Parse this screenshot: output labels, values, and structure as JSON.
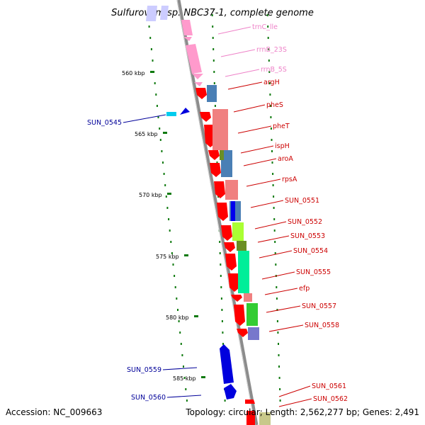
{
  "title": "Sulfurovum sp. NBC37-1, complete genome",
  "accession": "Accession: NC_009663",
  "topology": "Topology: circular; Length: 2,562,277 bp; Genes: 2,491",
  "colors": {
    "backbone": "#8c8c8c",
    "tick": "#0f7a0f",
    "forward_label": "#cc0000",
    "reverse_label": "#000099",
    "rna_label": "#ee82c8",
    "rna_feature": "#ff9acc",
    "forward_feature": "#ff0000",
    "reverse_feature": "#0000dd"
  },
  "scale_labels": [
    "560 kbp",
    "565 kbp",
    "570 kbp",
    "575 kbp",
    "580 kbp",
    "585 kbp"
  ],
  "features": [
    {
      "name": "trnC_lle",
      "kind": "rna"
    },
    {
      "name": "rrnB_23S",
      "kind": "rna"
    },
    {
      "name": "rrnB_5S",
      "kind": "rna"
    },
    {
      "name": "argH",
      "kind": "forward"
    },
    {
      "name": "SUN_0545",
      "kind": "reverse"
    },
    {
      "name": "pheS",
      "kind": "forward"
    },
    {
      "name": "pheT",
      "kind": "forward"
    },
    {
      "name": "ispH",
      "kind": "forward"
    },
    {
      "name": "aroA",
      "kind": "forward"
    },
    {
      "name": "rpsA",
      "kind": "forward"
    },
    {
      "name": "SUN_0551",
      "kind": "forward"
    },
    {
      "name": "SUN_0552",
      "kind": "forward"
    },
    {
      "name": "SUN_0553",
      "kind": "forward"
    },
    {
      "name": "SUN_0554",
      "kind": "forward"
    },
    {
      "name": "SUN_0555",
      "kind": "forward"
    },
    {
      "name": "efp",
      "kind": "forward"
    },
    {
      "name": "SUN_0557",
      "kind": "forward"
    },
    {
      "name": "SUN_0558",
      "kind": "forward"
    },
    {
      "name": "SUN_0559",
      "kind": "reverse"
    },
    {
      "name": "SUN_0560",
      "kind": "reverse"
    },
    {
      "name": "SUN_0561",
      "kind": "forward"
    },
    {
      "name": "SUN_0562",
      "kind": "forward"
    }
  ]
}
